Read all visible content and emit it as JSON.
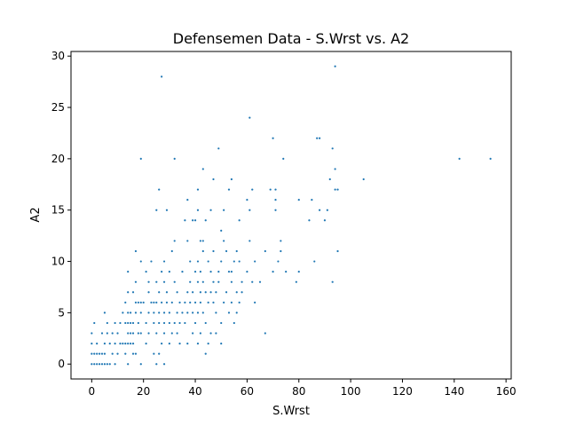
{
  "chart_data": {
    "type": "scatter",
    "title": "Defensemen Data - S.Wrst vs. A2",
    "xlabel": "S.Wrst",
    "ylabel": "A2",
    "xlim": [
      -8,
      162
    ],
    "ylim": [
      -1.45,
      30.45
    ],
    "xticks": [
      0,
      20,
      40,
      60,
      80,
      100,
      120,
      140,
      160
    ],
    "yticks": [
      0,
      5,
      10,
      15,
      20,
      25,
      30
    ],
    "grid": false,
    "legend": "none",
    "marker_color": "#1f77b4",
    "points": [
      [
        0,
        0
      ],
      [
        1,
        0
      ],
      [
        2,
        0
      ],
      [
        3,
        0
      ],
      [
        4,
        0
      ],
      [
        5,
        0
      ],
      [
        6,
        0
      ],
      [
        7,
        0
      ],
      [
        9,
        0
      ],
      [
        14,
        0
      ],
      [
        19,
        0
      ],
      [
        25,
        0
      ],
      [
        28,
        0
      ],
      [
        0,
        1
      ],
      [
        1,
        1
      ],
      [
        2,
        1
      ],
      [
        3,
        1
      ],
      [
        4,
        1
      ],
      [
        5,
        1
      ],
      [
        8,
        1
      ],
      [
        10,
        1
      ],
      [
        13,
        1
      ],
      [
        16,
        1
      ],
      [
        17,
        1
      ],
      [
        24,
        1
      ],
      [
        26,
        1
      ],
      [
        44,
        1
      ],
      [
        0,
        2
      ],
      [
        2,
        2
      ],
      [
        5,
        2
      ],
      [
        7,
        2
      ],
      [
        9,
        2
      ],
      [
        11,
        2
      ],
      [
        12,
        2
      ],
      [
        13,
        2
      ],
      [
        14,
        2
      ],
      [
        15,
        2
      ],
      [
        16,
        2
      ],
      [
        21,
        2
      ],
      [
        27,
        2
      ],
      [
        30,
        2
      ],
      [
        34,
        2
      ],
      [
        37,
        2
      ],
      [
        41,
        2
      ],
      [
        45,
        2
      ],
      [
        50,
        2
      ],
      [
        0,
        3
      ],
      [
        4,
        3
      ],
      [
        6,
        3
      ],
      [
        8,
        3
      ],
      [
        10,
        3
      ],
      [
        14,
        3
      ],
      [
        15,
        3
      ],
      [
        16,
        3
      ],
      [
        18,
        3
      ],
      [
        19,
        3
      ],
      [
        22,
        3
      ],
      [
        25,
        3
      ],
      [
        28,
        3
      ],
      [
        31,
        3
      ],
      [
        33,
        3
      ],
      [
        39,
        3
      ],
      [
        42,
        3
      ],
      [
        46,
        3
      ],
      [
        48,
        3
      ],
      [
        67,
        3
      ],
      [
        1,
        4
      ],
      [
        6,
        4
      ],
      [
        9,
        4
      ],
      [
        11,
        4
      ],
      [
        13,
        4
      ],
      [
        14,
        4
      ],
      [
        15,
        4
      ],
      [
        16,
        4
      ],
      [
        18,
        4
      ],
      [
        21,
        4
      ],
      [
        24,
        4
      ],
      [
        26,
        4
      ],
      [
        28,
        4
      ],
      [
        30,
        4
      ],
      [
        32,
        4
      ],
      [
        34,
        4
      ],
      [
        36,
        4
      ],
      [
        40,
        4
      ],
      [
        44,
        4
      ],
      [
        50,
        4
      ],
      [
        55,
        4
      ],
      [
        5,
        5
      ],
      [
        12,
        5
      ],
      [
        14,
        5
      ],
      [
        15,
        5
      ],
      [
        17,
        5
      ],
      [
        19,
        5
      ],
      [
        22,
        5
      ],
      [
        24,
        5
      ],
      [
        26,
        5
      ],
      [
        28,
        5
      ],
      [
        30,
        5
      ],
      [
        33,
        5
      ],
      [
        35,
        5
      ],
      [
        37,
        5
      ],
      [
        39,
        5
      ],
      [
        41,
        5
      ],
      [
        43,
        5
      ],
      [
        48,
        5
      ],
      [
        53,
        5
      ],
      [
        56,
        5
      ],
      [
        13,
        6
      ],
      [
        17,
        6
      ],
      [
        18,
        6
      ],
      [
        19,
        6
      ],
      [
        20,
        6
      ],
      [
        23,
        6
      ],
      [
        24,
        6
      ],
      [
        25,
        6
      ],
      [
        27,
        6
      ],
      [
        29,
        6
      ],
      [
        31,
        6
      ],
      [
        34,
        6
      ],
      [
        36,
        6
      ],
      [
        38,
        6
      ],
      [
        40,
        6
      ],
      [
        42,
        6
      ],
      [
        45,
        6
      ],
      [
        47,
        6
      ],
      [
        51,
        6
      ],
      [
        54,
        6
      ],
      [
        57,
        6
      ],
      [
        63,
        6
      ],
      [
        14,
        7
      ],
      [
        16,
        7
      ],
      [
        22,
        7
      ],
      [
        26,
        7
      ],
      [
        29,
        7
      ],
      [
        33,
        7
      ],
      [
        37,
        7
      ],
      [
        39,
        7
      ],
      [
        42,
        7
      ],
      [
        44,
        7
      ],
      [
        46,
        7
      ],
      [
        48,
        7
      ],
      [
        52,
        7
      ],
      [
        56,
        7
      ],
      [
        58,
        7
      ],
      [
        17,
        8
      ],
      [
        22,
        8
      ],
      [
        25,
        8
      ],
      [
        28,
        8
      ],
      [
        32,
        8
      ],
      [
        38,
        8
      ],
      [
        41,
        8
      ],
      [
        43,
        8
      ],
      [
        47,
        8
      ],
      [
        49,
        8
      ],
      [
        54,
        8
      ],
      [
        58,
        8
      ],
      [
        62,
        8
      ],
      [
        65,
        8
      ],
      [
        79,
        8
      ],
      [
        93,
        8
      ],
      [
        14,
        9
      ],
      [
        21,
        9
      ],
      [
        27,
        9
      ],
      [
        30,
        9
      ],
      [
        35,
        9
      ],
      [
        40,
        9
      ],
      [
        42,
        9
      ],
      [
        46,
        9
      ],
      [
        49,
        9
      ],
      [
        53,
        9
      ],
      [
        54,
        9
      ],
      [
        60,
        9
      ],
      [
        70,
        9
      ],
      [
        75,
        9
      ],
      [
        80,
        9
      ],
      [
        19,
        10
      ],
      [
        23,
        10
      ],
      [
        28,
        10
      ],
      [
        38,
        10
      ],
      [
        41,
        10
      ],
      [
        45,
        10
      ],
      [
        50,
        10
      ],
      [
        55,
        10
      ],
      [
        57,
        10
      ],
      [
        63,
        10
      ],
      [
        72,
        10
      ],
      [
        86,
        10
      ],
      [
        17,
        11
      ],
      [
        31,
        11
      ],
      [
        43,
        11
      ],
      [
        47,
        11
      ],
      [
        52,
        11
      ],
      [
        56,
        11
      ],
      [
        67,
        11
      ],
      [
        73,
        11
      ],
      [
        95,
        11
      ],
      [
        32,
        12
      ],
      [
        37,
        12
      ],
      [
        42,
        12
      ],
      [
        43,
        12
      ],
      [
        51,
        12
      ],
      [
        61,
        12
      ],
      [
        73,
        12
      ],
      [
        50,
        13
      ],
      [
        36,
        14
      ],
      [
        39,
        14
      ],
      [
        40,
        14
      ],
      [
        44,
        14
      ],
      [
        57,
        14
      ],
      [
        84,
        14
      ],
      [
        90,
        14
      ],
      [
        25,
        15
      ],
      [
        29,
        15
      ],
      [
        41,
        15
      ],
      [
        46,
        15
      ],
      [
        51,
        15
      ],
      [
        61,
        15
      ],
      [
        71,
        15
      ],
      [
        88,
        15
      ],
      [
        91,
        15
      ],
      [
        37,
        16
      ],
      [
        60,
        16
      ],
      [
        71,
        16
      ],
      [
        80,
        16
      ],
      [
        85,
        16
      ],
      [
        26,
        17
      ],
      [
        41,
        17
      ],
      [
        53,
        17
      ],
      [
        62,
        17
      ],
      [
        69,
        17
      ],
      [
        71,
        17
      ],
      [
        94,
        17
      ],
      [
        95,
        17
      ],
      [
        47,
        18
      ],
      [
        54,
        18
      ],
      [
        92,
        18
      ],
      [
        105,
        18
      ],
      [
        43,
        19
      ],
      [
        94,
        19
      ],
      [
        19,
        20
      ],
      [
        32,
        20
      ],
      [
        74,
        20
      ],
      [
        142,
        20
      ],
      [
        154,
        20
      ],
      [
        49,
        21
      ],
      [
        93,
        21
      ],
      [
        70,
        22
      ],
      [
        87,
        22
      ],
      [
        88,
        22
      ],
      [
        61,
        24
      ],
      [
        27,
        28
      ],
      [
        94,
        29
      ]
    ]
  }
}
